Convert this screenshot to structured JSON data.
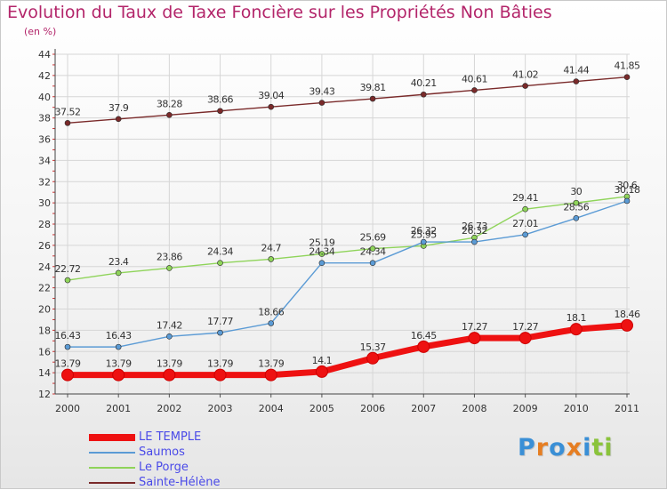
{
  "header": {
    "title": "Evolution du Taux de Taxe Foncière sur les Propriétés Non Bâties",
    "unit": "(en %)"
  },
  "logo": {
    "text": "Proxiti",
    "letters": [
      "P",
      "r",
      "o",
      "x",
      "i",
      "t",
      "i"
    ],
    "colors": [
      "#3a8fd6",
      "#e67e22",
      "#3a8fd6",
      "#e67e22",
      "#3a8fd6",
      "#8ac33b",
      "#8ac33b"
    ]
  },
  "chart_data": {
    "type": "line",
    "x": [
      2000,
      2001,
      2002,
      2003,
      2004,
      2005,
      2006,
      2007,
      2008,
      2009,
      2010,
      2011
    ],
    "ylim": [
      12,
      44
    ],
    "yticks": [
      12,
      14,
      16,
      18,
      20,
      22,
      24,
      26,
      28,
      30,
      32,
      34,
      36,
      38,
      40,
      42,
      44
    ],
    "grid": true,
    "legend_position": "bottom-left",
    "series": [
      {
        "name": "Sainte-Hélène",
        "color": "#7a2a2a",
        "values": [
          37.52,
          37.9,
          38.28,
          38.66,
          39.04,
          39.43,
          39.81,
          40.21,
          40.61,
          41.02,
          41.44,
          41.85
        ],
        "labels": [
          "37.52",
          "37.9",
          "38.28",
          "38.66",
          "39.04",
          "39.43",
          "39.81",
          "40.21",
          "40.61",
          "41.02",
          "41.44",
          "41.85"
        ]
      },
      {
        "name": "Le Porge",
        "color": "#8fd45a",
        "values": [
          22.72,
          23.4,
          23.86,
          24.34,
          24.7,
          25.19,
          25.69,
          25.95,
          26.73,
          29.41,
          30,
          30.6
        ],
        "labels": [
          "22.72",
          "23.4",
          "23.86",
          "24.34",
          "24.7",
          "25.19",
          "25.69",
          "25.95",
          "26.73",
          "29.41",
          "30",
          "30.6"
        ]
      },
      {
        "name": "Saumos",
        "color": "#5b9bd5",
        "values": [
          16.43,
          16.43,
          17.42,
          17.77,
          18.66,
          24.34,
          24.34,
          26.32,
          26.32,
          27.01,
          28.56,
          30.18
        ],
        "labels": [
          "16.43",
          "16.43",
          "17.42",
          "17.77",
          "18.66",
          "24.34",
          "24.34",
          "26.32",
          "26.32",
          "27.01",
          "28.56",
          "30.18"
        ]
      },
      {
        "name": "LE TEMPLE",
        "color": "#ee1111",
        "values": [
          13.79,
          13.79,
          13.79,
          13.79,
          13.79,
          14.1,
          15.37,
          16.45,
          17.27,
          17.27,
          18.1,
          18.46
        ],
        "labels": [
          "13.79",
          "13.79",
          "13.79",
          "13.79",
          "13.79",
          "14.1",
          "15.37",
          "16.45",
          "17.27",
          "17.27",
          "18.1",
          "18.46"
        ]
      }
    ],
    "legend_order": [
      "LE TEMPLE",
      "Saumos",
      "Le Porge",
      "Sainte-Hélène"
    ]
  }
}
